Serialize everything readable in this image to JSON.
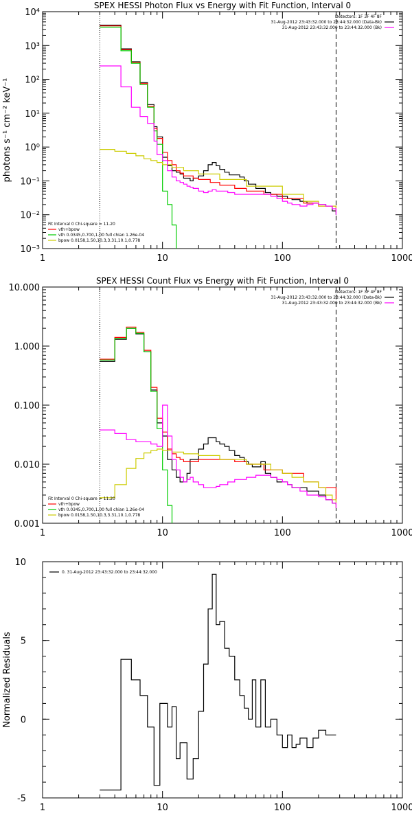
{
  "colors": {
    "data": "#000000",
    "total": "#ff0000",
    "vth": "#00cc00",
    "bpow": "#cccc00",
    "bk": "#ff00ff",
    "residual": "#000000"
  },
  "chart_data": [
    {
      "type": "line",
      "title": "SPEX HESSI Photon Flux vs Energy with Fit Function, Interval 0",
      "xlabel": "",
      "ylabel": "photons s⁻¹ cm⁻² keV⁻¹",
      "xscale": "log",
      "yscale": "log",
      "xlim": [
        1,
        1000
      ],
      "ylim": [
        0.001,
        10000
      ],
      "xticks": [
        "1",
        "10",
        "100",
        "1000"
      ],
      "yticks": [
        "10⁻³",
        "10⁻²",
        "10⁻¹",
        "10⁰",
        "10¹",
        "10²",
        "10³",
        "10⁴"
      ],
      "x_vlines": [
        3,
        280
      ],
      "legend_header": [
        "Detectors: 1F 3F 4F 8F",
        "31-Aug-2012 23:43:32.000 to 23:44:32.000 (Data-Bk)",
        "31-Aug-2012 23:43:32.000 to 23:44:32.000 (Bk)"
      ],
      "legend_fit": [
        "Fit Interval 0   Chi-square = 11.20",
        "vth+bpow",
        "vth 0.0345,0.700,1.00  full chian 1.26e-04",
        "bpow 0.0158,1.50,10.3,3.31,10.1,0.778"
      ],
      "series": [
        {
          "key": "data",
          "step": true,
          "x": [
            3,
            3.5,
            4,
            4.5,
            5,
            5.5,
            6,
            6.5,
            7,
            7.5,
            8,
            8.5,
            9,
            10,
            11,
            12,
            13,
            14,
            15,
            16,
            17,
            18,
            20,
            22,
            24,
            26,
            28,
            30,
            33,
            36,
            40,
            44,
            48,
            52,
            56,
            60,
            66,
            72,
            80,
            90,
            100,
            110,
            120,
            140,
            160,
            180,
            200,
            230,
            260,
            280
          ],
          "y": [
            4000,
            4000,
            4000,
            800,
            800,
            330,
            330,
            80,
            80,
            18,
            18,
            4,
            2,
            0.5,
            0.28,
            0.2,
            0.18,
            0.16,
            0.12,
            0.12,
            0.1,
            0.12,
            0.14,
            0.2,
            0.3,
            0.35,
            0.28,
            0.22,
            0.18,
            0.15,
            0.15,
            0.13,
            0.1,
            0.08,
            0.08,
            0.06,
            0.06,
            0.045,
            0.04,
            0.035,
            0.035,
            0.03,
            0.028,
            0.025,
            0.022,
            0.022,
            0.02,
            0.018,
            0.013,
            0.01
          ]
        },
        {
          "key": "total",
          "step": true,
          "x": [
            3,
            3.5,
            4,
            4.5,
            5,
            5.5,
            6,
            6.5,
            7,
            7.5,
            8,
            8.5,
            9,
            10,
            11,
            12,
            13,
            14,
            15,
            16,
            18,
            20,
            25,
            30,
            40,
            50,
            70,
            100,
            150,
            200,
            280
          ],
          "y": [
            3800,
            3800,
            3800,
            750,
            750,
            320,
            320,
            75,
            75,
            16,
            16,
            3.5,
            1.8,
            0.7,
            0.4,
            0.3,
            0.2,
            0.17,
            0.14,
            0.14,
            0.12,
            0.11,
            0.09,
            0.075,
            0.06,
            0.05,
            0.04,
            0.03,
            0.022,
            0.018,
            0.013
          ]
        },
        {
          "key": "vth",
          "step": true,
          "x": [
            3,
            3.5,
            4,
            4.5,
            5,
            5.5,
            6,
            6.5,
            7,
            7.5,
            8,
            8.5,
            9,
            10,
            11,
            12,
            13
          ],
          "y": [
            3500,
            3500,
            3500,
            700,
            700,
            300,
            300,
            70,
            70,
            15,
            15,
            3,
            1.2,
            0.05,
            0.02,
            0.005,
            0.001
          ]
        },
        {
          "key": "bpow",
          "step": true,
          "x": [
            3,
            4,
            5,
            6,
            7,
            8,
            9,
            10,
            12,
            15,
            20,
            30,
            50,
            100,
            150,
            200,
            280
          ],
          "y": [
            0.85,
            0.75,
            0.65,
            0.55,
            0.45,
            0.4,
            0.35,
            0.3,
            0.25,
            0.2,
            0.16,
            0.11,
            0.07,
            0.04,
            0.025,
            0.018,
            0.013
          ]
        },
        {
          "key": "bk",
          "step": true,
          "x": [
            3,
            3.5,
            4,
            4.5,
            5,
            5.5,
            6,
            6.5,
            7,
            7.5,
            8,
            8.5,
            9,
            10,
            11,
            12,
            13,
            14,
            15,
            16,
            17,
            18,
            20,
            22,
            24,
            26,
            28,
            30,
            35,
            40,
            50,
            60,
            70,
            80,
            90,
            100,
            110,
            120,
            140,
            160,
            180,
            200,
            230,
            260,
            280
          ],
          "y": [
            250,
            250,
            250,
            60,
            60,
            15,
            15,
            8,
            8,
            5,
            5,
            1.5,
            0.6,
            0.4,
            0.2,
            0.13,
            0.1,
            0.09,
            0.08,
            0.07,
            0.065,
            0.06,
            0.05,
            0.045,
            0.05,
            0.055,
            0.05,
            0.05,
            0.045,
            0.04,
            0.04,
            0.04,
            0.04,
            0.035,
            0.03,
            0.025,
            0.022,
            0.02,
            0.018,
            0.02,
            0.022,
            0.02,
            0.018,
            0.015,
            0.01
          ]
        }
      ]
    },
    {
      "type": "line",
      "title": "SPEX HESSI Count Flux vs Energy with Fit Function, Interval 0",
      "xlabel": "",
      "ylabel": "",
      "xscale": "log",
      "yscale": "log",
      "xlim": [
        1,
        1000
      ],
      "ylim": [
        0.001,
        10
      ],
      "xticks": [
        "1",
        "10",
        "100",
        "1000"
      ],
      "yticks": [
        "0.001",
        "0.010",
        "0.100",
        "1.000",
        "10.000"
      ],
      "x_vlines": [
        3,
        280
      ],
      "legend_header": [
        "Detectors: 1F 3F 4F 8F",
        "31-Aug-2012 23:43:32.000 to 23:44:32.000 (Data-Bk)",
        "31-Aug-2012 23:43:32.000 to 23:44:32.000 (Bk)"
      ],
      "legend_fit": [
        "Fit Interval 0   Chi-square = 11.20",
        "vth+bpow",
        "vth 0.0345,0.700,1.00  full chian 1.26e-04",
        "bpow 0.0158,1.50,10.3,3.31,10.1,0.778"
      ],
      "series": [
        {
          "key": "data",
          "step": true,
          "x": [
            3,
            3.5,
            4,
            4.5,
            5,
            5.5,
            6,
            6.5,
            7,
            7.5,
            8,
            8.5,
            9,
            10,
            11,
            12,
            13,
            14,
            15,
            16,
            17,
            18,
            20,
            22,
            24,
            26,
            28,
            30,
            33,
            36,
            40,
            44,
            48,
            52,
            56,
            60,
            66,
            72,
            80,
            90,
            100,
            110,
            120,
            140,
            160,
            180,
            200,
            230,
            260,
            280
          ],
          "y": [
            0.55,
            0.55,
            1.3,
            1.3,
            2.0,
            2.0,
            1.6,
            1.6,
            0.8,
            0.8,
            0.18,
            0.18,
            0.05,
            0.03,
            0.012,
            0.008,
            0.006,
            0.005,
            0.005,
            0.007,
            0.012,
            0.012,
            0.018,
            0.022,
            0.028,
            0.028,
            0.024,
            0.022,
            0.02,
            0.017,
            0.014,
            0.013,
            0.011,
            0.01,
            0.009,
            0.009,
            0.011,
            0.007,
            0.006,
            0.005,
            0.005,
            0.0045,
            0.004,
            0.004,
            0.0035,
            0.0035,
            0.003,
            0.0025,
            0.0022,
            0.002
          ]
        },
        {
          "key": "total",
          "step": true,
          "x": [
            3,
            3.5,
            4,
            4.5,
            5,
            5.5,
            6,
            6.5,
            7,
            7.5,
            8,
            8.5,
            9,
            10,
            11,
            12,
            13,
            14,
            15,
            18,
            20,
            25,
            30,
            40,
            50,
            70,
            100,
            150,
            200,
            280
          ],
          "y": [
            0.6,
            0.6,
            1.4,
            1.4,
            2.1,
            2.1,
            1.7,
            1.7,
            0.85,
            0.85,
            0.2,
            0.2,
            0.06,
            0.035,
            0.018,
            0.015,
            0.013,
            0.012,
            0.011,
            0.011,
            0.012,
            0.012,
            0.012,
            0.011,
            0.01,
            0.008,
            0.007,
            0.005,
            0.004,
            0.0025
          ]
        },
        {
          "key": "vth",
          "step": true,
          "x": [
            3,
            3.5,
            4,
            4.5,
            5,
            5.5,
            6,
            6.5,
            7,
            7.5,
            8,
            8.5,
            9,
            10,
            11,
            12
          ],
          "y": [
            0.58,
            0.58,
            1.35,
            1.35,
            2.0,
            2.0,
            1.65,
            1.65,
            0.8,
            0.8,
            0.17,
            0.17,
            0.04,
            0.008,
            0.002,
            0.001
          ]
        },
        {
          "key": "bpow",
          "step": true,
          "x": [
            3,
            3.5,
            4,
            4.5,
            5,
            5.5,
            6,
            6.5,
            7,
            7.5,
            8,
            9,
            10,
            12,
            15,
            20,
            30,
            50,
            80,
            100,
            120,
            150,
            200,
            230,
            260,
            280
          ],
          "y": [
            0.0027,
            0.0027,
            0.0045,
            0.0045,
            0.0085,
            0.0085,
            0.0125,
            0.0125,
            0.0155,
            0.0155,
            0.017,
            0.018,
            0.017,
            0.016,
            0.015,
            0.014,
            0.012,
            0.01,
            0.008,
            0.007,
            0.006,
            0.005,
            0.004,
            0.003,
            0.0025,
            0.0018
          ]
        },
        {
          "key": "bk",
          "step": true,
          "x": [
            3,
            4,
            5,
            6,
            7,
            8,
            9,
            10,
            11,
            12,
            13,
            14,
            15,
            16,
            17,
            18,
            20,
            22,
            24,
            26,
            28,
            30,
            35,
            40,
            50,
            60,
            70,
            80,
            90,
            100,
            110,
            120,
            140,
            160,
            180,
            200,
            230,
            260,
            280
          ],
          "y": [
            0.038,
            0.033,
            0.026,
            0.024,
            0.024,
            0.022,
            0.02,
            0.1,
            0.03,
            0.012,
            0.008,
            0.006,
            0.005,
            0.0055,
            0.006,
            0.005,
            0.0045,
            0.004,
            0.004,
            0.004,
            0.0042,
            0.0045,
            0.005,
            0.0055,
            0.006,
            0.0065,
            0.0065,
            0.006,
            0.0055,
            0.005,
            0.0045,
            0.004,
            0.0035,
            0.003,
            0.003,
            0.0028,
            0.0025,
            0.0022,
            0.0018
          ]
        }
      ]
    },
    {
      "type": "line",
      "title": "",
      "xlabel": "",
      "ylabel": "Normalized Residuals",
      "xscale": "log",
      "yscale": "linear",
      "xlim": [
        1,
        1000
      ],
      "ylim": [
        -5,
        10
      ],
      "xticks": [
        "1",
        "10",
        "100",
        "1000"
      ],
      "yticks": [
        "-5",
        "0",
        "5",
        "10"
      ],
      "legend": [
        "0. 31-Aug-2012 23:43:32.000 to 23:44:32.000"
      ],
      "series": [
        {
          "key": "residual",
          "step": true,
          "x": [
            3,
            4.5,
            5.5,
            6.5,
            7.5,
            8.5,
            9.5,
            11,
            12,
            13,
            14,
            16,
            18,
            20,
            22,
            24,
            26,
            28,
            30,
            33,
            36,
            40,
            44,
            48,
            52,
            56,
            60,
            66,
            72,
            80,
            90,
            100,
            110,
            120,
            130,
            140,
            160,
            180,
            200,
            230,
            260,
            280
          ],
          "y": [
            -4.5,
            3.8,
            2.5,
            1.5,
            -0.5,
            -4.2,
            1.0,
            -0.5,
            0.8,
            -2.5,
            -1.5,
            -3.8,
            -2.5,
            0.5,
            3.5,
            7.0,
            9.2,
            6.0,
            6.2,
            4.5,
            4.0,
            2.5,
            1.5,
            0.7,
            0.0,
            2.5,
            -0.5,
            2.5,
            -0.5,
            0.0,
            -1.0,
            -1.8,
            -1.0,
            -1.8,
            -1.6,
            -1.2,
            -1.8,
            -1.2,
            -0.7,
            -1.0,
            -1.0,
            -1.0
          ]
        }
      ]
    }
  ]
}
